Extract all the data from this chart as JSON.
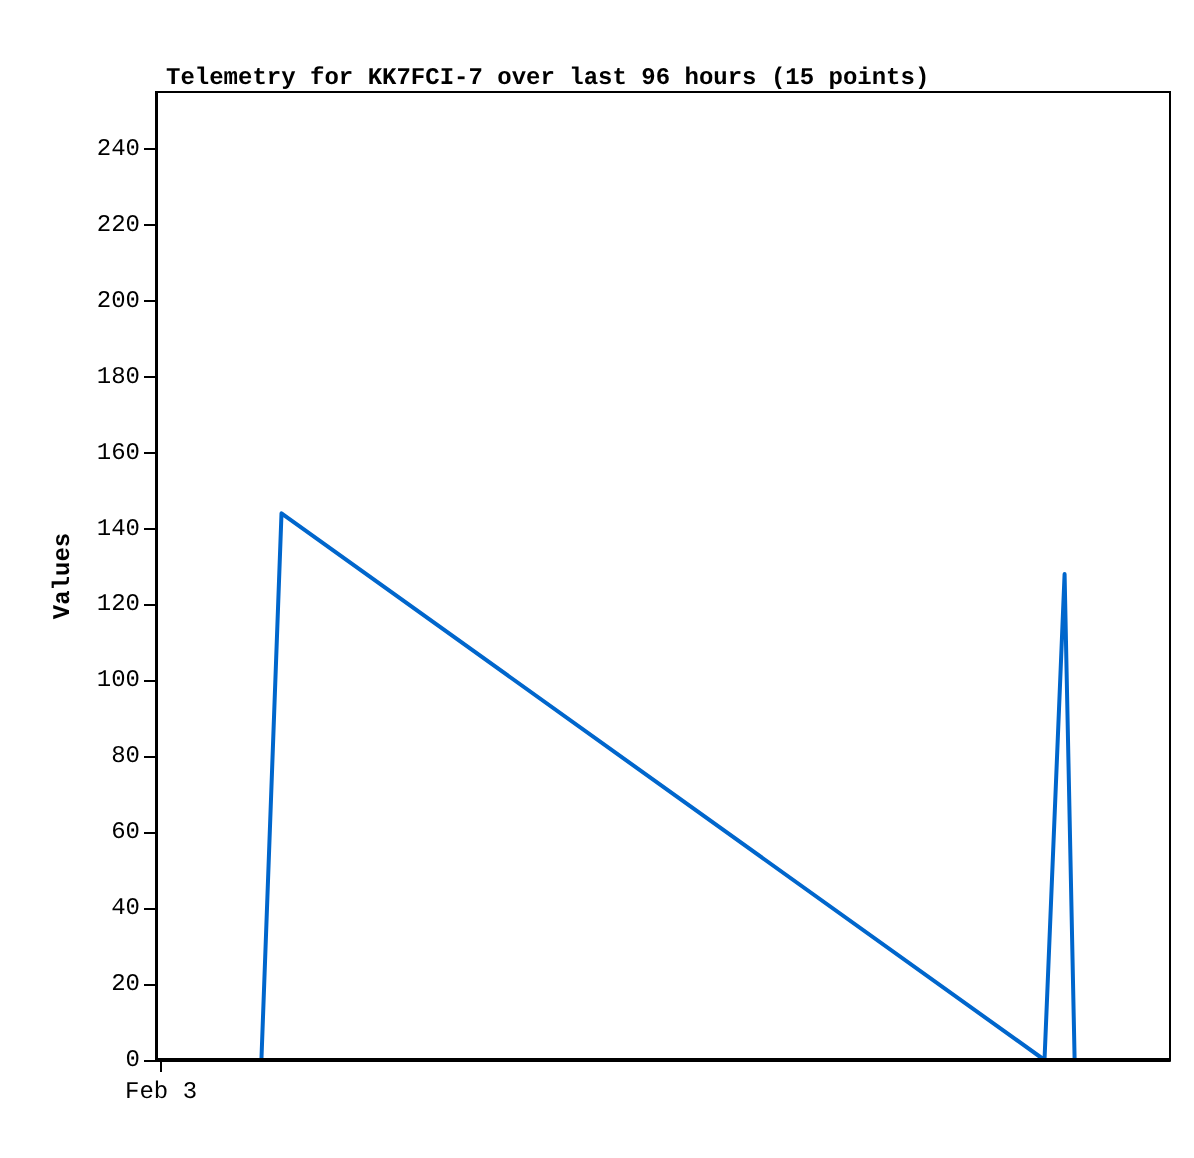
{
  "chart_data": {
    "type": "line",
    "title": "Telemetry for KK7FCI-7 over last 96 hours (15 points)",
    "ylabel": "Values",
    "categories": [
      "Feb 3",
      null,
      null,
      null,
      null,
      null,
      null,
      null,
      null,
      null,
      null,
      null,
      null,
      null,
      null,
      null,
      null,
      null,
      null,
      null,
      null,
      null,
      null,
      null,
      null,
      null,
      null,
      null,
      null,
      null,
      null,
      null,
      null,
      null,
      null,
      null,
      null,
      null,
      null,
      null,
      null,
      null,
      null,
      null,
      null,
      null,
      null,
      null,
      null,
      null,
      null,
      null,
      null,
      null,
      null,
      null,
      null,
      null,
      null,
      null,
      null,
      null,
      null,
      null,
      null,
      null,
      null,
      null,
      null,
      null,
      null,
      null,
      null,
      null,
      null,
      null,
      null,
      null,
      null,
      null,
      null,
      null,
      null,
      null,
      null,
      null,
      null,
      null,
      null,
      null,
      null,
      null,
      null,
      null,
      null,
      null,
      null,
      null,
      null,
      null,
      null
    ],
    "ylim": [
      0,
      255
    ],
    "yticks": [
      0,
      20,
      40,
      60,
      80,
      100,
      120,
      140,
      160,
      180,
      200,
      220,
      240
    ],
    "marker": "none",
    "line_style": "solid",
    "ref_lines": [
      {
        "axis": "y",
        "value": 0,
        "color": "#000000"
      }
    ],
    "series": [
      {
        "color": "#0066cc",
        "values": [
          null,
          null,
          null,
          null,
          null,
          null,
          null,
          null,
          null,
          null,
          0,
          null,
          144,
          null,
          null,
          null,
          null,
          null,
          null,
          null,
          null,
          null,
          null,
          null,
          null,
          null,
          null,
          null,
          null,
          null,
          null,
          null,
          null,
          null,
          null,
          null,
          null,
          null,
          null,
          null,
          null,
          null,
          null,
          null,
          null,
          null,
          null,
          null,
          null,
          null,
          null,
          null,
          null,
          null,
          null,
          null,
          null,
          null,
          null,
          null,
          null,
          null,
          null,
          null,
          null,
          null,
          null,
          null,
          null,
          null,
          null,
          null,
          null,
          null,
          null,
          null,
          null,
          null,
          null,
          null,
          null,
          null,
          null,
          null,
          null,
          null,
          null,
          null,
          0,
          null,
          128,
          0,
          null,
          null,
          null,
          null,
          null,
          null,
          null,
          null,
          null
        ]
      }
    ]
  }
}
